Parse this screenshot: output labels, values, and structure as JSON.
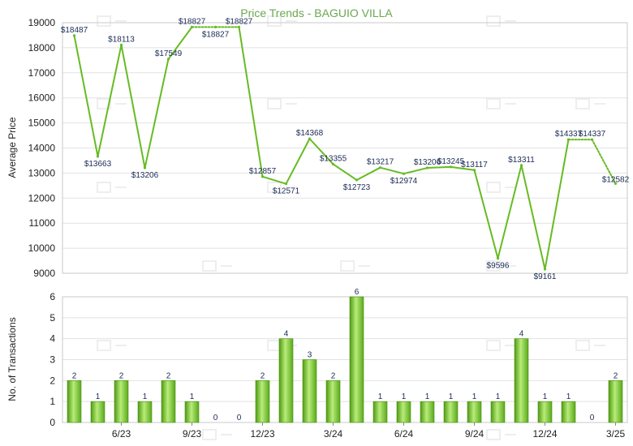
{
  "chart_data": [
    {
      "type": "line",
      "title": "Price Trends - BAGUIO VILLA",
      "ylabel": "Average Price",
      "ylim": [
        9000,
        19000
      ],
      "yticks": [
        "9000",
        "10000",
        "11000",
        "12000",
        "13000",
        "14000",
        "15000",
        "16000",
        "17000",
        "18000",
        "19000"
      ],
      "grid": true,
      "line_color": "#66bb22",
      "series": [
        {
          "values": [
            18487,
            13663,
            18113,
            13206,
            17549,
            18827,
            18827,
            18827,
            12857,
            12571,
            14368,
            13355,
            12723,
            13217,
            12974,
            13206,
            13245,
            13117,
            9596,
            13311,
            9161,
            14337,
            14337,
            12582
          ],
          "labels": [
            "$18487",
            "$13663",
            "$18113",
            "$13206",
            "$17549",
            "$18827",
            "$18827",
            "$18827",
            "$12857",
            "$12571",
            "$14368",
            "$13355",
            "$12723",
            "$13217",
            "$12974",
            "$13206",
            "$13245",
            "$13117",
            "$9596",
            "$13311",
            "$9161",
            "$14337",
            "$14337",
            "$12582"
          ],
          "interpolated": [
            false,
            false,
            false,
            false,
            false,
            false,
            true,
            false,
            false,
            false,
            false,
            false,
            false,
            false,
            false,
            false,
            false,
            false,
            false,
            false,
            false,
            false,
            true,
            false
          ]
        }
      ]
    },
    {
      "type": "bar",
      "ylabel": "No. of Transactions",
      "ylim": [
        0,
        6
      ],
      "yticks": [
        "0",
        "1",
        "2",
        "3",
        "4",
        "5",
        "6"
      ],
      "grid": true,
      "bar_color": "#6cc224",
      "x_tick_labels": [
        {
          "label": "6/23",
          "index": 2
        },
        {
          "label": "9/23",
          "index": 5
        },
        {
          "label": "12/23",
          "index": 8
        },
        {
          "label": "3/24",
          "index": 11
        },
        {
          "label": "6/24",
          "index": 14
        },
        {
          "label": "9/24",
          "index": 17
        },
        {
          "label": "12/24",
          "index": 20
        },
        {
          "label": "3/25",
          "index": 23
        }
      ],
      "values": [
        2,
        1,
        2,
        1,
        2,
        1,
        0,
        0,
        2,
        4,
        3,
        2,
        6,
        1,
        1,
        1,
        1,
        1,
        1,
        4,
        1,
        1,
        0,
        2
      ]
    }
  ]
}
